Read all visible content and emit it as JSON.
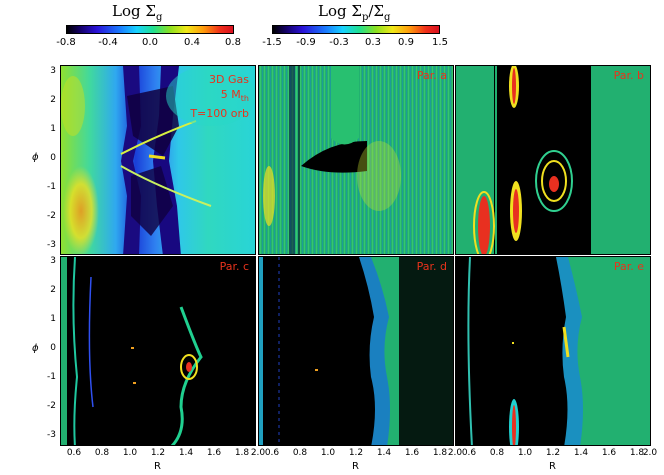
{
  "colorbar_left": {
    "title": "Log Σ",
    "subscript": "g",
    "ticks": [
      "-0.8",
      "-0.4",
      "0.0",
      "0.4",
      "0.8"
    ]
  },
  "colorbar_right": {
    "title": "Log Σ",
    "subscript_p": "p",
    "slash": "/Σ",
    "subscript_g": "g",
    "ticks": [
      "-1.5",
      "-0.9",
      "-0.3",
      "0.3",
      "0.9",
      "1.5"
    ]
  },
  "panels": {
    "gas": {
      "line1": "3D Gas",
      "line2a": "5 M",
      "line2b": "th",
      "line3": "T=100 orb"
    },
    "a": {
      "label": "Par. a"
    },
    "b": {
      "label": "Par. b"
    },
    "c": {
      "label": "Par. c"
    },
    "d": {
      "label": "Par. d"
    },
    "e": {
      "label": "Par. e"
    }
  },
  "axes": {
    "ylabel": "ϕ",
    "xlabel": "R",
    "yticks": [
      "3",
      "2",
      "1",
      "0",
      "-1",
      "-2",
      "-3"
    ],
    "xticks": [
      "0.6",
      "0.8",
      "1.0",
      "1.2",
      "1.4",
      "1.6",
      "1.8",
      "2.0"
    ]
  },
  "colors": {
    "highlight": "#e8331c",
    "background": "#000000",
    "gas_blue": "#2f7fe0",
    "particle_green": "#2fd06a"
  }
}
